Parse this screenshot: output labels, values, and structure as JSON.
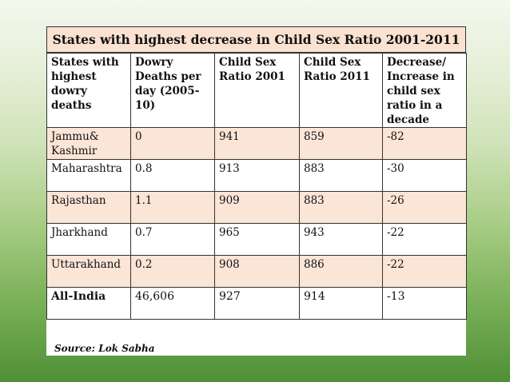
{
  "title": "States with highest decrease in Child Sex Ratio 2001-2011",
  "columns": [
    "States with highest dowry deaths",
    "Dowry Deaths per day (2005-10)",
    "Child Sex Ratio 2001",
    "Child Sex Ratio 2011",
    "Decrease/ Increase in child sex ratio in a decade"
  ],
  "rows": [
    {
      "state": "Jammu& Kashmir",
      "dowry": "0",
      "csr2001": "941",
      "csr2011": "859",
      "change": "-82"
    },
    {
      "state": "Maharashtra",
      "dowry": "0.8",
      "csr2001": "913",
      "csr2011": "883",
      "change": "-30"
    },
    {
      "state": "Rajasthan",
      "dowry": "1.1",
      "csr2001": "909",
      "csr2011": "883",
      "change": "-26"
    },
    {
      "state": "Jharkhand",
      "dowry": "0.7",
      "csr2001": "965",
      "csr2011": "943",
      "change": "-22"
    },
    {
      "state": "Uttarakhand",
      "dowry": "0.2",
      "csr2001": "908",
      "csr2011": "886",
      "change": "-22"
    }
  ],
  "total": {
    "state": "All-India",
    "dowry": "46,606",
    "csr2001": "927",
    "csr2011": "914",
    "change": "-13"
  },
  "source": "Source: Lok Sabha",
  "colors": {
    "row_shade": "#fbe5d6",
    "title_bg": "#fbe1d0",
    "background_top": "#f4f8ee",
    "background_bottom": "#4f8f35"
  }
}
